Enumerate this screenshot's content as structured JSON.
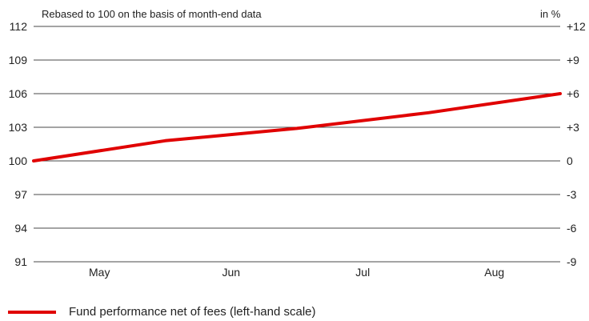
{
  "chart_data": {
    "type": "line",
    "subtitle": "Rebased to 100 on the basis of month-end data",
    "right_axis_unit": "in %",
    "x_ticks": [
      "May",
      "Jun",
      "Jul",
      "Aug"
    ],
    "y_left_ticks": [
      "112",
      "109",
      "106",
      "103",
      "100",
      "97",
      "94",
      "91"
    ],
    "y_right_ticks": [
      "+12",
      "+9",
      "+6",
      "+3",
      "0",
      "-3",
      "-6",
      "-9"
    ],
    "ylim": [
      91,
      112
    ],
    "grid": true,
    "legend_position": "bottom-left",
    "series": [
      {
        "name": "Fund performance net of fees (left-hand scale)",
        "color": "#e00000",
        "points": [
          {
            "x": 0.0,
            "y": 100.0
          },
          {
            "x": 1.0,
            "y": 101.8
          },
          {
            "x": 2.0,
            "y": 102.9
          },
          {
            "x": 3.0,
            "y": 104.3
          },
          {
            "x": 4.0,
            "y": 106.0
          }
        ]
      }
    ]
  }
}
